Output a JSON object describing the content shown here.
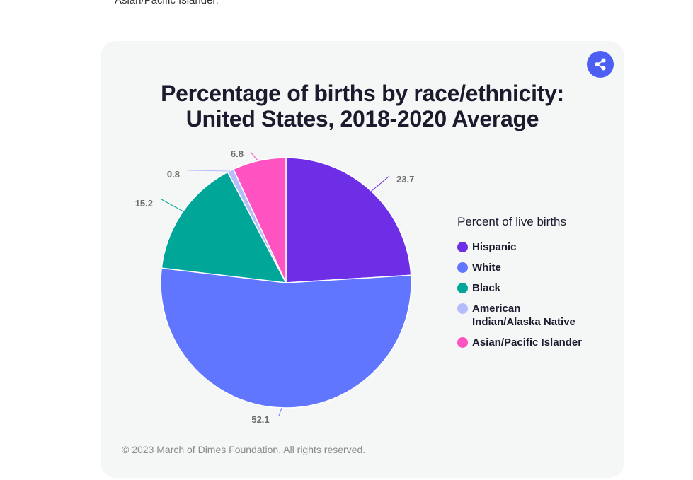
{
  "page": {
    "top_text": "Asian/Pacific Islander."
  },
  "icons": {
    "share": "share-icon"
  },
  "chart_data": {
    "type": "pie",
    "title_line1": "Percentage of births by race/ethnicity:",
    "title_line2": "United States, 2018-2020 Average",
    "legend_title": "Percent of live births",
    "legend_placement": "right",
    "slices": [
      {
        "name": "Hispanic",
        "value": 23.7,
        "label": "23.7",
        "color": "#6d2ee6"
      },
      {
        "name": "White",
        "value": 52.1,
        "label": "52.1",
        "color": "#6176fe"
      },
      {
        "name": "Black",
        "value": 15.2,
        "label": "15.2",
        "color": "#00a799"
      },
      {
        "name": "American Indian/Alaska Native",
        "value": 0.8,
        "label": "0.8",
        "color": "#b4bcfb"
      },
      {
        "name": "Asian/Pacific Islander",
        "value": 6.8,
        "label": "6.8",
        "color": "#fe53c1"
      }
    ],
    "legend_lines": [
      [
        "Hispanic"
      ],
      [
        "White"
      ],
      [
        "Black"
      ],
      [
        "American",
        "Indian/Alaska Native"
      ],
      [
        "Asian/Pacific Islander"
      ]
    ]
  },
  "footer": {
    "copyright": "© 2023 March of Dimes Foundation. All rights reserved."
  }
}
